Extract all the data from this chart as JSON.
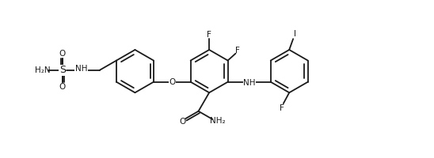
{
  "bg_color": "#ffffff",
  "line_color": "#1a1a1a",
  "lw": 1.3,
  "fs": 7.5,
  "fw": 5.48,
  "fh": 2.0,
  "dpi": 100,
  "r": 0.55,
  "xlim": [
    0.2,
    10.8
  ],
  "ylim": [
    0.1,
    4.1
  ],
  "rings": {
    "B": [
      5.3,
      2.3
    ],
    "A": [
      3.4,
      2.3
    ],
    "C": [
      7.35,
      2.3
    ]
  }
}
